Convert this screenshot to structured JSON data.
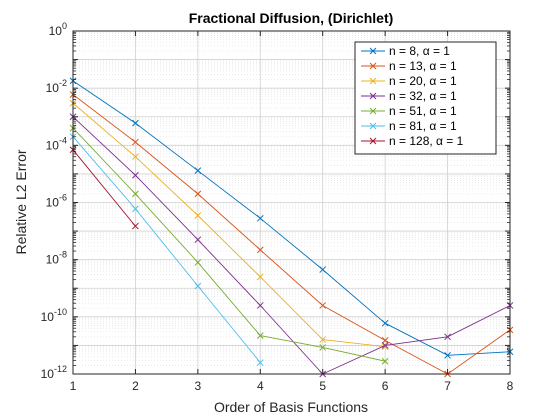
{
  "chart_data": {
    "type": "line",
    "title": "Fractional Diffusion, (Dirichlet)",
    "xlabel": "Order of Basis Functions",
    "ylabel": "Relative L2 Error",
    "xlim": [
      1,
      8
    ],
    "ylim": [
      1e-12,
      1
    ],
    "yscale": "log",
    "x_ticks": [
      "1",
      "2",
      "3",
      "4",
      "5",
      "6",
      "7",
      "8"
    ],
    "y_ticks": [
      {
        "base": "10",
        "exp": "-12"
      },
      {
        "base": "10",
        "exp": "-10"
      },
      {
        "base": "10",
        "exp": "-8"
      },
      {
        "base": "10",
        "exp": "-6"
      },
      {
        "base": "10",
        "exp": "-4"
      },
      {
        "base": "10",
        "exp": "-2"
      },
      {
        "base": "10",
        "exp": "0"
      }
    ],
    "grid": true,
    "legend_position": "top-right",
    "marker": "x",
    "series": [
      {
        "name": "n = 8, α = 1",
        "color": "#0072bd",
        "x": [
          1,
          2,
          3,
          4,
          5,
          6,
          7,
          8
        ],
        "y": [
          0.018,
          0.0006,
          1.3e-05,
          2.8e-07,
          4.5e-09,
          6e-11,
          4.5e-12,
          6e-12
        ]
      },
      {
        "name": "n = 13, α = 1",
        "color": "#d95319",
        "x": [
          1,
          2,
          3,
          4,
          5,
          6,
          7,
          8
        ],
        "y": [
          0.006,
          0.00013,
          2e-06,
          2.2e-08,
          2.5e-10,
          1.5e-11,
          1e-12,
          3.5e-11
        ]
      },
      {
        "name": "n = 20, α = 1",
        "color": "#edb120",
        "x": [
          1,
          2,
          3,
          4,
          5,
          6
        ],
        "y": [
          0.003,
          4e-05,
          3.5e-07,
          2.5e-09,
          1.6e-11,
          9e-12
        ]
      },
      {
        "name": "n = 32, α = 1",
        "color": "#7e2f8e",
        "x": [
          1,
          2,
          3,
          4,
          5,
          6,
          7,
          8
        ],
        "y": [
          0.001,
          9e-06,
          5e-08,
          2.5e-10,
          1e-12,
          1e-11,
          2e-11,
          2.5e-10
        ]
      },
      {
        "name": "n = 51, α = 1",
        "color": "#77ac30",
        "x": [
          1,
          2,
          3,
          4,
          5,
          6
        ],
        "y": [
          0.0004,
          2e-06,
          8e-09,
          2.2e-11,
          8.5e-12,
          2.8e-12
        ]
      },
      {
        "name": "n = 81, α = 1",
        "color": "#4dbeee",
        "x": [
          1,
          2,
          3,
          4
        ],
        "y": [
          0.0002,
          6e-07,
          1.2e-09,
          2.5e-12
        ]
      },
      {
        "name": "n = 128, α = 1",
        "color": "#a2142f",
        "x": [
          1,
          2
        ],
        "y": [
          7e-05,
          1.5e-07
        ]
      }
    ]
  }
}
